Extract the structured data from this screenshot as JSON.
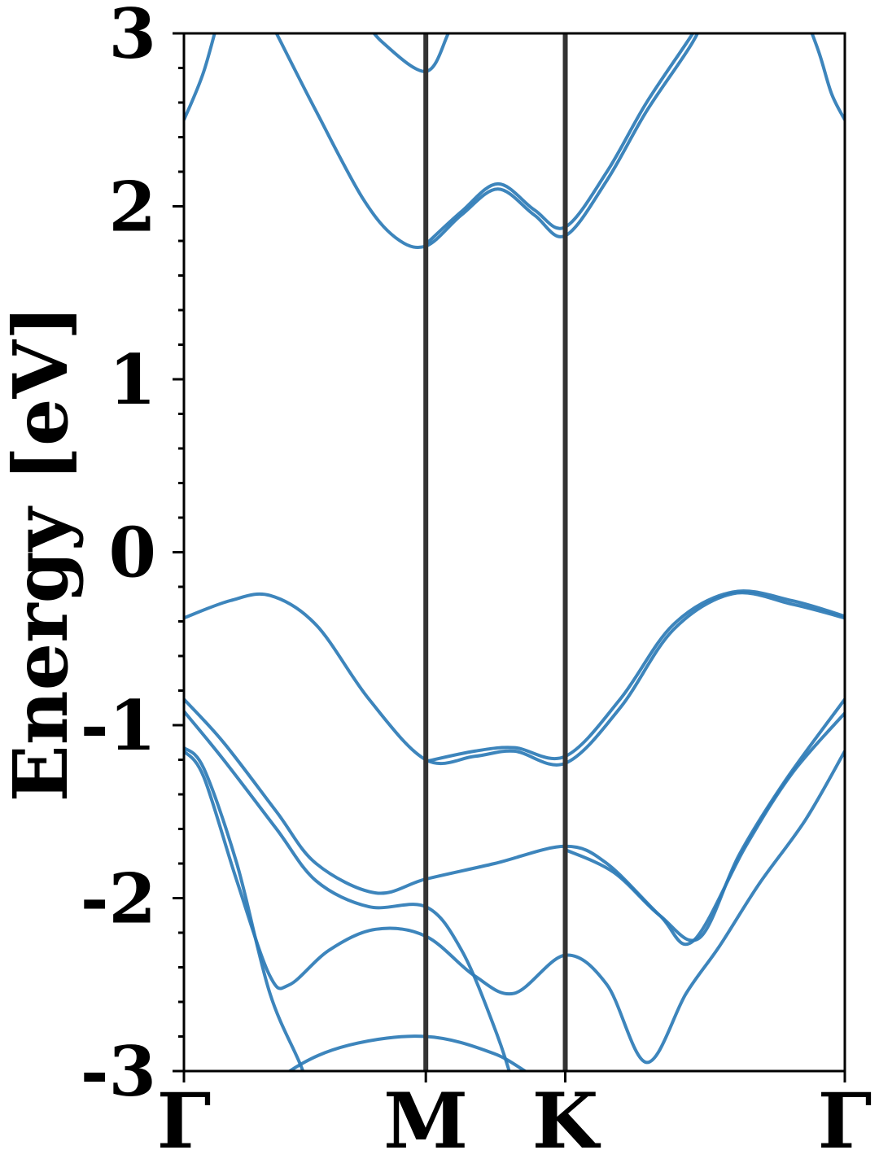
{
  "chart_data": {
    "type": "line",
    "title": "",
    "ylabel": "Energy [eV]",
    "xlabel": "",
    "ylim": [
      -3,
      3
    ],
    "xlim": [
      0,
      1
    ],
    "yticks": [
      -3,
      -2,
      -1,
      0,
      1,
      2,
      3
    ],
    "ytick_labels": [
      "-3",
      "-2",
      "-1",
      "0",
      "1",
      "2",
      "3"
    ],
    "high_symmetry_points": [
      {
        "label": "Γ",
        "x": 0.0
      },
      {
        "label": "M",
        "x": 0.366
      },
      {
        "label": "K",
        "x": 0.577
      },
      {
        "label": "Γ",
        "x": 1.0
      }
    ],
    "grid": false,
    "legend": "none",
    "colors": {
      "band": "#2c7bb6",
      "symmetry_line": "#333333",
      "axis": "#000000"
    },
    "series": [
      {
        "values": [
          [
            0.0,
            -3.6
          ],
          [
            0.07,
            -3.3
          ],
          [
            0.16,
            -3.0
          ],
          [
            0.25,
            -2.85
          ],
          [
            0.366,
            -2.8
          ],
          [
            0.47,
            -2.9
          ],
          [
            0.577,
            -3.1
          ],
          [
            0.8,
            -3.2
          ],
          [
            0.9,
            -3.05
          ],
          [
            1.0,
            -3.2
          ]
        ]
      },
      {
        "values": [
          [
            0.0,
            -1.15
          ],
          [
            0.03,
            -1.3
          ],
          [
            0.08,
            -1.9
          ],
          [
            0.13,
            -2.45
          ],
          [
            0.16,
            -2.5
          ],
          [
            0.22,
            -2.3
          ],
          [
            0.29,
            -2.18
          ],
          [
            0.366,
            -2.22
          ],
          [
            0.44,
            -2.45
          ],
          [
            0.5,
            -2.55
          ],
          [
            0.577,
            -2.33
          ],
          [
            0.64,
            -2.5
          ],
          [
            0.7,
            -2.95
          ],
          [
            0.76,
            -2.55
          ],
          [
            0.81,
            -2.28
          ],
          [
            0.87,
            -1.92
          ],
          [
            0.94,
            -1.55
          ],
          [
            1.0,
            -1.15
          ]
        ]
      },
      {
        "values": [
          [
            0.0,
            -1.13
          ],
          [
            0.03,
            -1.25
          ],
          [
            0.08,
            -1.8
          ],
          [
            0.13,
            -2.55
          ],
          [
            0.18,
            -3.0
          ],
          [
            0.2,
            -3.3
          ],
          [
            0.25,
            -3.6
          ]
        ]
      },
      {
        "values": [
          [
            0.0,
            -0.92
          ],
          [
            0.06,
            -1.2
          ],
          [
            0.14,
            -1.6
          ],
          [
            0.2,
            -1.9
          ],
          [
            0.28,
            -2.05
          ],
          [
            0.366,
            -2.05
          ],
          [
            0.42,
            -2.3
          ],
          [
            0.47,
            -2.75
          ],
          [
            0.5,
            -3.1
          ],
          [
            0.52,
            -3.4
          ]
        ]
      },
      {
        "values": [
          [
            0.0,
            -0.85
          ],
          [
            0.06,
            -1.1
          ],
          [
            0.14,
            -1.5
          ],
          [
            0.2,
            -1.8
          ],
          [
            0.29,
            -1.97
          ],
          [
            0.366,
            -1.89
          ],
          [
            0.47,
            -1.8
          ],
          [
            0.577,
            -1.7
          ],
          [
            0.64,
            -1.8
          ],
          [
            0.72,
            -2.1
          ],
          [
            0.77,
            -2.25
          ],
          [
            0.85,
            -1.7
          ],
          [
            0.92,
            -1.28
          ],
          [
            1.0,
            -0.93
          ]
        ]
      },
      {
        "values": [
          [
            0.577,
            -1.72
          ],
          [
            0.65,
            -1.85
          ],
          [
            0.72,
            -2.1
          ],
          [
            0.78,
            -2.23
          ],
          [
            0.84,
            -1.75
          ],
          [
            0.91,
            -1.32
          ],
          [
            1.0,
            -0.85
          ]
        ]
      },
      {
        "values": [
          [
            0.0,
            -0.38
          ],
          [
            0.07,
            -0.28
          ],
          [
            0.13,
            -0.25
          ],
          [
            0.2,
            -0.42
          ],
          [
            0.28,
            -0.85
          ],
          [
            0.366,
            -1.2
          ],
          [
            0.44,
            -1.18
          ],
          [
            0.5,
            -1.15
          ],
          [
            0.577,
            -1.22
          ],
          [
            0.66,
            -0.9
          ],
          [
            0.74,
            -0.45
          ],
          [
            0.83,
            -0.24
          ],
          [
            0.92,
            -0.3
          ],
          [
            1.0,
            -0.38
          ]
        ]
      },
      {
        "values": [
          [
            0.366,
            -1.21
          ],
          [
            0.44,
            -1.15
          ],
          [
            0.5,
            -1.13
          ],
          [
            0.577,
            -1.18
          ],
          [
            0.66,
            -0.85
          ],
          [
            0.74,
            -0.42
          ],
          [
            0.83,
            -0.23
          ],
          [
            0.92,
            -0.28
          ],
          [
            1.0,
            -0.37
          ]
        ]
      },
      {
        "values": [
          [
            0.0,
            2.5
          ],
          [
            0.03,
            2.78
          ],
          [
            0.06,
            3.2
          ],
          [
            0.08,
            3.5
          ]
        ]
      },
      {
        "values": [
          [
            0.14,
            3.0
          ],
          [
            0.2,
            2.55
          ],
          [
            0.27,
            2.05
          ],
          [
            0.32,
            1.82
          ],
          [
            0.366,
            1.77
          ],
          [
            0.42,
            1.95
          ],
          [
            0.475,
            2.1
          ],
          [
            0.53,
            1.95
          ],
          [
            0.577,
            1.83
          ],
          [
            0.64,
            2.15
          ],
          [
            0.7,
            2.55
          ],
          [
            0.77,
            2.95
          ],
          [
            0.8,
            3.2
          ]
        ]
      },
      {
        "values": [
          [
            0.366,
            1.78
          ],
          [
            0.42,
            1.97
          ],
          [
            0.475,
            2.13
          ],
          [
            0.53,
            1.98
          ],
          [
            0.577,
            1.88
          ],
          [
            0.64,
            2.2
          ],
          [
            0.7,
            2.6
          ],
          [
            0.77,
            3.0
          ],
          [
            0.8,
            3.2
          ]
        ]
      },
      {
        "values": [
          [
            0.27,
            3.1
          ],
          [
            0.3,
            2.95
          ],
          [
            0.366,
            2.78
          ],
          [
            0.4,
            3.0
          ],
          [
            0.42,
            3.2
          ]
        ]
      },
      {
        "values": [
          [
            0.93,
            3.2
          ],
          [
            0.96,
            2.9
          ],
          [
            0.98,
            2.65
          ],
          [
            1.0,
            2.5
          ]
        ]
      }
    ]
  }
}
